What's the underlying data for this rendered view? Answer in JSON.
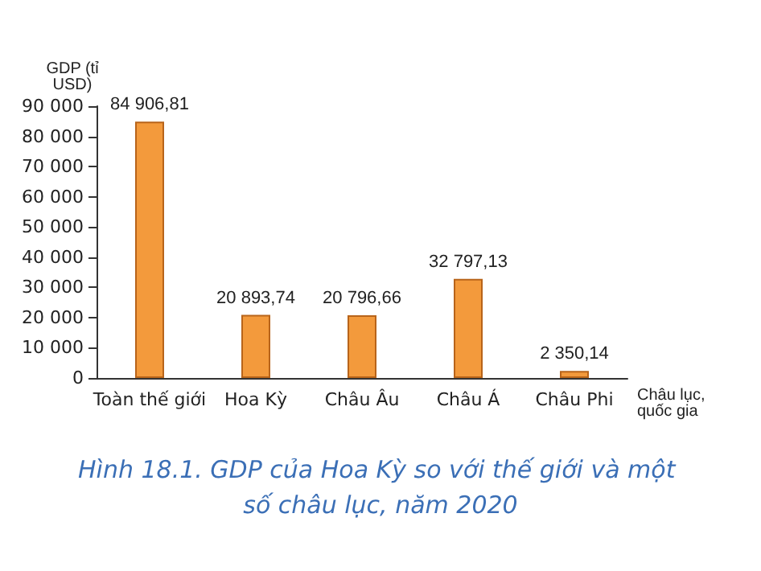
{
  "chart_data": {
    "type": "bar",
    "title": "Hình 18.1. GDP của Hoa Kỳ so với thế giới và một số châu lục, năm 2020",
    "ylabel": "GDP (tỉ USD)",
    "xlabel": "Châu lục, quốc gia",
    "categories": [
      "Toàn thế giới",
      "Hoa Kỳ",
      "Châu Âu",
      "Châu Á",
      "Châu Phi"
    ],
    "values": [
      84906.81,
      20893.74,
      20796.66,
      32797.13,
      2350.14
    ],
    "value_labels": [
      "84 906,81",
      "20 893,74",
      "20 796,66",
      "32 797,13",
      "2 350,14"
    ],
    "color": "#f39a3c",
    "ylim": [
      0,
      90000
    ],
    "yticks": [
      {
        "value": 0,
        "label": "0"
      },
      {
        "value": 10000,
        "label": "10 000"
      },
      {
        "value": 20000,
        "label": "20 000"
      },
      {
        "value": 30000,
        "label": "30 000"
      },
      {
        "value": 40000,
        "label": "40 000"
      },
      {
        "value": 50000,
        "label": "50 000"
      },
      {
        "value": 60000,
        "label": "60 000"
      },
      {
        "value": 70000,
        "label": "70 000"
      },
      {
        "value": 80000,
        "label": "80 000"
      },
      {
        "value": 90000,
        "label": "90 000"
      }
    ],
    "grid": false
  }
}
